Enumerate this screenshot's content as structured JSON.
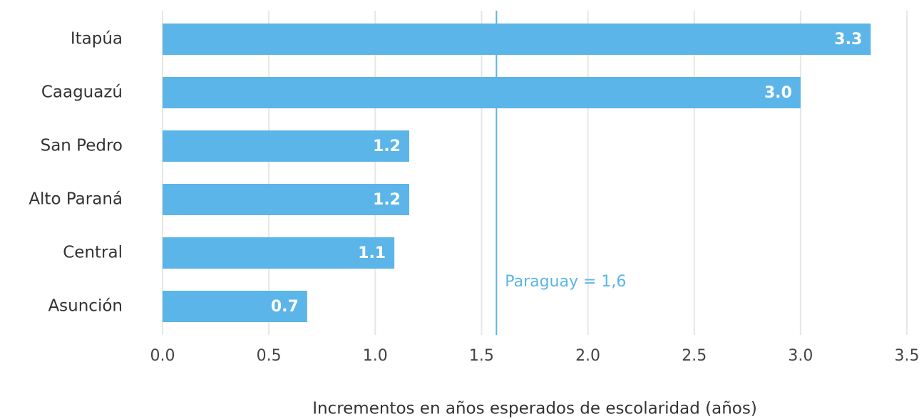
{
  "chart_data": {
    "type": "bar",
    "orientation": "horizontal",
    "categories": [
      "Itapúa",
      "Caaguazú",
      "San Pedro",
      "Alto Paraná",
      "Central",
      "Asunción"
    ],
    "values": [
      3.33,
      3.0,
      1.16,
      1.16,
      1.09,
      0.68
    ],
    "value_labels": [
      "3.3",
      "3.0",
      "1.2",
      "1.2",
      "1.1",
      "0.7"
    ],
    "color": "#5bb5e8",
    "xlabel": "Incrementos en años esperados de escolaridad (años)",
    "xlim": [
      0,
      3.5
    ],
    "xticks": [
      {
        "value": 0,
        "label": "0.0"
      },
      0.5,
      {
        "value": 1,
        "label": "1.0"
      },
      1.5,
      {
        "value": 2,
        "label": "2.0"
      },
      2.5,
      {
        "value": 3,
        "label": "3.0"
      },
      3.5
    ],
    "grid": true,
    "reference_line": {
      "value": 1.57,
      "label": "Paraguay = 1,6",
      "color": "#5bb5e8"
    }
  }
}
